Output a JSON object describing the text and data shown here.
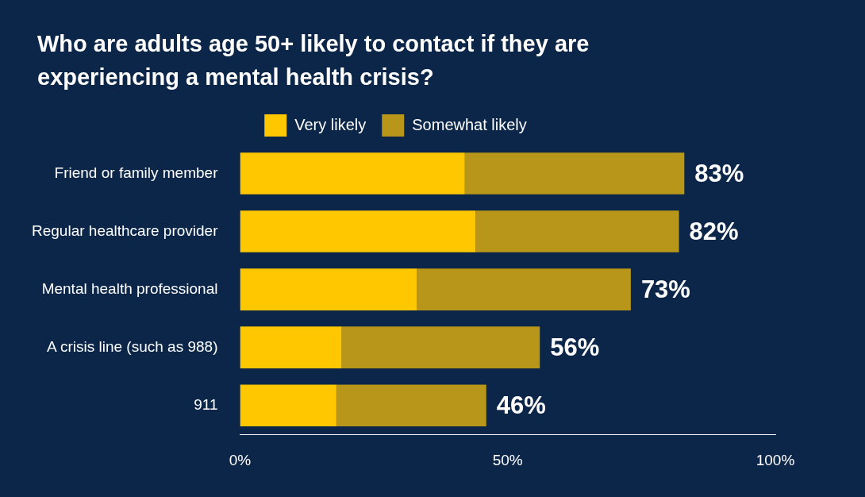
{
  "chart_data": {
    "type": "bar",
    "title": "Who are adults age 50+ likely to contact if they are experiencing a mental health crisis?",
    "orientation": "horizontal",
    "stacked": true,
    "categories": [
      "Friend or family member",
      "Regular healthcare provider",
      "Mental health professional",
      "A crisis line (such as 988)",
      "911"
    ],
    "series": [
      {
        "name": "Very likely",
        "color": "#ffc700",
        "values": [
          42,
          44,
          33,
          19,
          18
        ]
      },
      {
        "name": "Somewhat likely",
        "color": "#b8961a",
        "values": [
          41,
          38,
          40,
          37,
          28
        ]
      }
    ],
    "totals": [
      "83%",
      "82%",
      "73%",
      "56%",
      "46%"
    ],
    "xlim": [
      0,
      100
    ],
    "xticks": [
      {
        "value": 0,
        "label": "0%"
      },
      {
        "value": 50,
        "label": "50%"
      },
      {
        "value": 100,
        "label": "100%"
      }
    ],
    "grid": false,
    "legend": "top"
  }
}
